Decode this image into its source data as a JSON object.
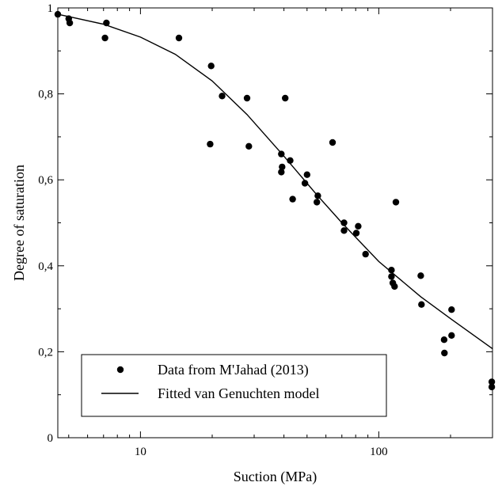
{
  "chart_data": {
    "type": "scatter",
    "title": "",
    "xlabel": "Suction (MPa)",
    "ylabel": "Degree of saturation",
    "xscale": "log",
    "xlim": [
      4.5,
      300
    ],
    "ylim": [
      0,
      1
    ],
    "grid": false,
    "legend_position": "bottom-left",
    "x_ticks": [
      10,
      100
    ],
    "x_tick_labels": [
      "10",
      "100"
    ],
    "y_ticks": [
      0,
      0.2,
      0.4,
      0.6,
      0.8,
      1
    ],
    "y_tick_labels": [
      "0",
      "0,2",
      "0,4",
      "0,6",
      "0,8",
      "1"
    ],
    "series": [
      {
        "name": "Data from M'Jahad (2013)",
        "kind": "markers",
        "marker": "filled-circle",
        "color": "#000000",
        "points": [
          [
            4.5,
            0.985
          ],
          [
            5.0,
            0.975
          ],
          [
            5.05,
            0.965
          ],
          [
            7.2,
            0.965
          ],
          [
            7.1,
            0.93
          ],
          [
            14.5,
            0.93
          ],
          [
            19.8,
            0.865
          ],
          [
            22.0,
            0.795
          ],
          [
            19.6,
            0.683
          ],
          [
            28.0,
            0.79
          ],
          [
            28.5,
            0.678
          ],
          [
            40.5,
            0.79
          ],
          [
            39.0,
            0.66
          ],
          [
            39.3,
            0.63
          ],
          [
            39.0,
            0.618
          ],
          [
            42.5,
            0.645
          ],
          [
            43.5,
            0.555
          ],
          [
            49.0,
            0.592
          ],
          [
            50.0,
            0.612
          ],
          [
            55.0,
            0.548
          ],
          [
            55.5,
            0.563
          ],
          [
            64.0,
            0.687
          ],
          [
            71.5,
            0.5
          ],
          [
            71.5,
            0.482
          ],
          [
            80.5,
            0.476
          ],
          [
            82.0,
            0.492
          ],
          [
            88.0,
            0.427
          ],
          [
            113.0,
            0.39
          ],
          [
            113.0,
            0.375
          ],
          [
            114.5,
            0.36
          ],
          [
            116.5,
            0.352
          ],
          [
            118.0,
            0.548
          ],
          [
            150.0,
            0.377
          ],
          [
            151.0,
            0.31
          ],
          [
            188.0,
            0.228
          ],
          [
            188.5,
            0.197
          ],
          [
            202.0,
            0.298
          ],
          [
            202.0,
            0.238
          ],
          [
            298.0,
            0.13
          ],
          [
            298.0,
            0.118
          ]
        ]
      },
      {
        "name": "Fitted van Genuchten model",
        "kind": "line",
        "color": "#000000",
        "points": [
          [
            4.5,
            0.985
          ],
          [
            5.0,
            0.98
          ],
          [
            7.0,
            0.962
          ],
          [
            10.0,
            0.932
          ],
          [
            14.0,
            0.892
          ],
          [
            20.0,
            0.83
          ],
          [
            28.0,
            0.752
          ],
          [
            40.0,
            0.655
          ],
          [
            55.0,
            0.565
          ],
          [
            70.0,
            0.5
          ],
          [
            100.0,
            0.41
          ],
          [
            150.0,
            0.328
          ],
          [
            200.0,
            0.277
          ],
          [
            300.0,
            0.207
          ]
        ]
      }
    ]
  }
}
